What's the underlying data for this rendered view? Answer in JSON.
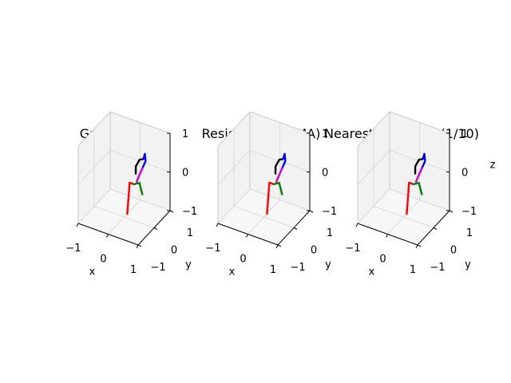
{
  "figure": {
    "panels": [
      {
        "title": "Ground Truth"
      },
      {
        "title": "Residual sup. (MA)"
      },
      {
        "title": "Nearest Neighbor (1/10)"
      }
    ]
  },
  "chart_data": [
    {
      "type": "line3d",
      "title": "Ground Truth",
      "xlabel": "x",
      "ylabel": "y",
      "zlabel": "",
      "xlim": [
        -1,
        1
      ],
      "ylim": [
        -1,
        1
      ],
      "zlim": [
        -1,
        1
      ],
      "xticks": [
        "−1",
        "0",
        "1"
      ],
      "yticks": [
        "−1",
        "0",
        "1"
      ],
      "zticks": [
        "−1",
        "0",
        "1"
      ],
      "grid": true,
      "series": [
        {
          "color": "#ff0000",
          "points": [
            [
              0.05,
              0.1,
              -0.95
            ],
            [
              0.08,
              0.12,
              -0.55
            ],
            [
              0.1,
              0.15,
              -0.15
            ],
            [
              0.25,
              0.15,
              -0.15
            ]
          ]
        },
        {
          "color": "#008000",
          "points": [
            [
              0.25,
              0.15,
              -0.15
            ],
            [
              0.35,
              0.3,
              -0.15
            ],
            [
              0.42,
              0.35,
              -0.45
            ]
          ]
        },
        {
          "color": "#000000",
          "points": [
            [
              0.2,
              0.35,
              0.02
            ],
            [
              0.15,
              0.45,
              0.15
            ],
            [
              0.22,
              0.55,
              0.3
            ],
            [
              0.32,
              0.6,
              0.32
            ]
          ]
        },
        {
          "color": "#0000ff",
          "points": [
            [
              0.32,
              0.6,
              0.32
            ],
            [
              0.4,
              0.55,
              0.5
            ],
            [
              0.45,
              0.5,
              0.35
            ],
            [
              0.4,
              0.4,
              0.2
            ]
          ]
        },
        {
          "color": "#cc00cc",
          "points": [
            [
              0.4,
              0.4,
              0.2
            ],
            [
              0.35,
              0.3,
              0.05
            ],
            [
              0.3,
              0.22,
              -0.1
            ]
          ]
        }
      ]
    },
    {
      "type": "line3d",
      "title": "Residual sup. (MA)",
      "xlabel": "x",
      "ylabel": "y",
      "zlabel": "",
      "xlim": [
        -1,
        1
      ],
      "ylim": [
        -1,
        1
      ],
      "zlim": [
        -1,
        1
      ],
      "xticks": [
        "−1",
        "0",
        "1"
      ],
      "yticks": [
        "−1",
        "0",
        "1"
      ],
      "zticks": [
        "−1",
        "0",
        "1"
      ],
      "grid": true,
      "series": [
        {
          "color": "#ff0000",
          "points": [
            [
              0.05,
              0.1,
              -0.95
            ],
            [
              0.08,
              0.12,
              -0.55
            ],
            [
              0.1,
              0.15,
              -0.15
            ],
            [
              0.25,
              0.15,
              -0.15
            ]
          ]
        },
        {
          "color": "#008000",
          "points": [
            [
              0.25,
              0.15,
              -0.15
            ],
            [
              0.35,
              0.3,
              -0.15
            ],
            [
              0.42,
              0.35,
              -0.45
            ]
          ]
        },
        {
          "color": "#000000",
          "points": [
            [
              0.2,
              0.35,
              0.02
            ],
            [
              0.15,
              0.45,
              0.15
            ],
            [
              0.22,
              0.55,
              0.3
            ],
            [
              0.32,
              0.6,
              0.32
            ]
          ]
        },
        {
          "color": "#0000ff",
          "points": [
            [
              0.32,
              0.6,
              0.32
            ],
            [
              0.4,
              0.55,
              0.5
            ],
            [
              0.45,
              0.5,
              0.35
            ],
            [
              0.4,
              0.4,
              0.2
            ]
          ]
        },
        {
          "color": "#cc00cc",
          "points": [
            [
              0.4,
              0.4,
              0.2
            ],
            [
              0.35,
              0.3,
              0.05
            ],
            [
              0.3,
              0.22,
              -0.1
            ]
          ]
        }
      ]
    },
    {
      "type": "line3d",
      "title": "Nearest Neighbor (1/10)",
      "xlabel": "x",
      "ylabel": "y",
      "zlabel": "z",
      "xlim": [
        -1,
        1
      ],
      "ylim": [
        -1,
        1
      ],
      "zlim": [
        -1,
        1
      ],
      "xticks": [
        "−1",
        "0",
        "1"
      ],
      "yticks": [
        "−1",
        "0",
        "1"
      ],
      "zticks": [
        "−1",
        "0",
        "1"
      ],
      "grid": true,
      "series": [
        {
          "color": "#ff0000",
          "points": [
            [
              0.05,
              0.1,
              -0.95
            ],
            [
              0.08,
              0.12,
              -0.55
            ],
            [
              0.1,
              0.15,
              -0.15
            ],
            [
              0.25,
              0.15,
              -0.15
            ]
          ]
        },
        {
          "color": "#008000",
          "points": [
            [
              0.25,
              0.15,
              -0.15
            ],
            [
              0.35,
              0.3,
              -0.15
            ],
            [
              0.42,
              0.35,
              -0.45
            ]
          ]
        },
        {
          "color": "#000000",
          "points": [
            [
              0.2,
              0.35,
              0.02
            ],
            [
              0.15,
              0.45,
              0.15
            ],
            [
              0.22,
              0.55,
              0.3
            ],
            [
              0.32,
              0.6,
              0.32
            ]
          ]
        },
        {
          "color": "#0000ff",
          "points": [
            [
              0.32,
              0.6,
              0.32
            ],
            [
              0.4,
              0.55,
              0.5
            ],
            [
              0.45,
              0.5,
              0.35
            ],
            [
              0.4,
              0.4,
              0.2
            ]
          ]
        },
        {
          "color": "#cc00cc",
          "points": [
            [
              0.4,
              0.4,
              0.2
            ],
            [
              0.35,
              0.3,
              0.05
            ],
            [
              0.3,
              0.22,
              -0.1
            ]
          ]
        }
      ]
    }
  ]
}
